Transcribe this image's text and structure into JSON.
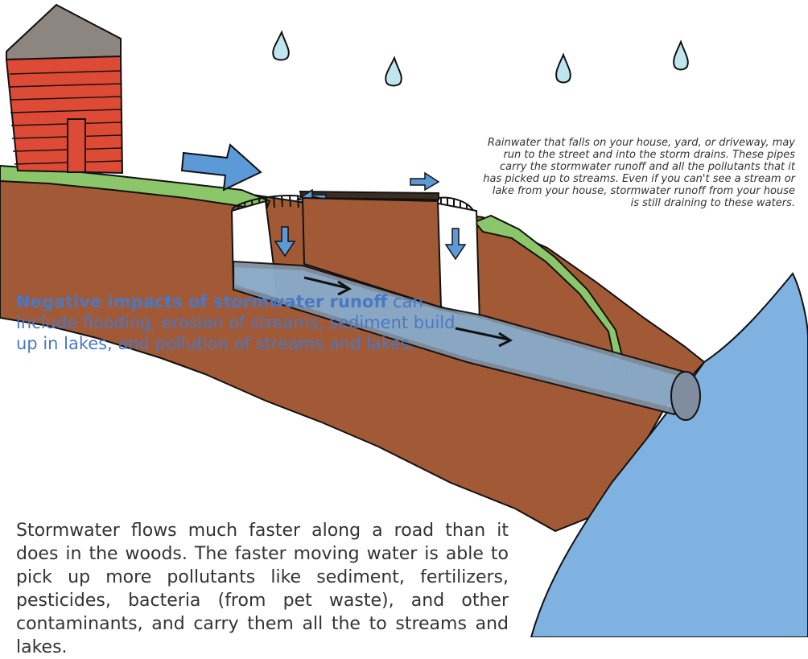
{
  "caption": "Rainwater that falls on your house, yard, or driveway, may run to the street and into the storm drains. These pipes carry the stormwater runoff and all the pollutants that it has picked up to streams. Even if you can't see a stream or lake from your house, stormwater runoff from your house is still draining to these waters.",
  "impacts": {
    "lead": "Negative impacts of stormwater runoff",
    "rest": " can include flooding, erosion of streams, sediment build up in lakes, and pollution of streams and lakes."
  },
  "body": "Stormwater flows much faster along a road than it does in the woods. The faster moving water is able to pick up more pollutants like sediment, fertilizers, pesticides, bacteria (from pet waste), and other contaminants, and carry them all the to streams and lakes.",
  "colors": {
    "soil": "#a15a35",
    "grass": "#8cc66a",
    "water": "#7fb2e0",
    "house_wall": "#dd4a36",
    "roof": "#8d8580",
    "arrow_blue": "#5b9ad6",
    "pipe": "#7f8d9e",
    "raindrop": "#bfe6ee"
  },
  "icons": [
    "raindrop-icon",
    "house-icon",
    "storm-drain-icon",
    "pipe-icon",
    "flow-arrow-icon"
  ]
}
